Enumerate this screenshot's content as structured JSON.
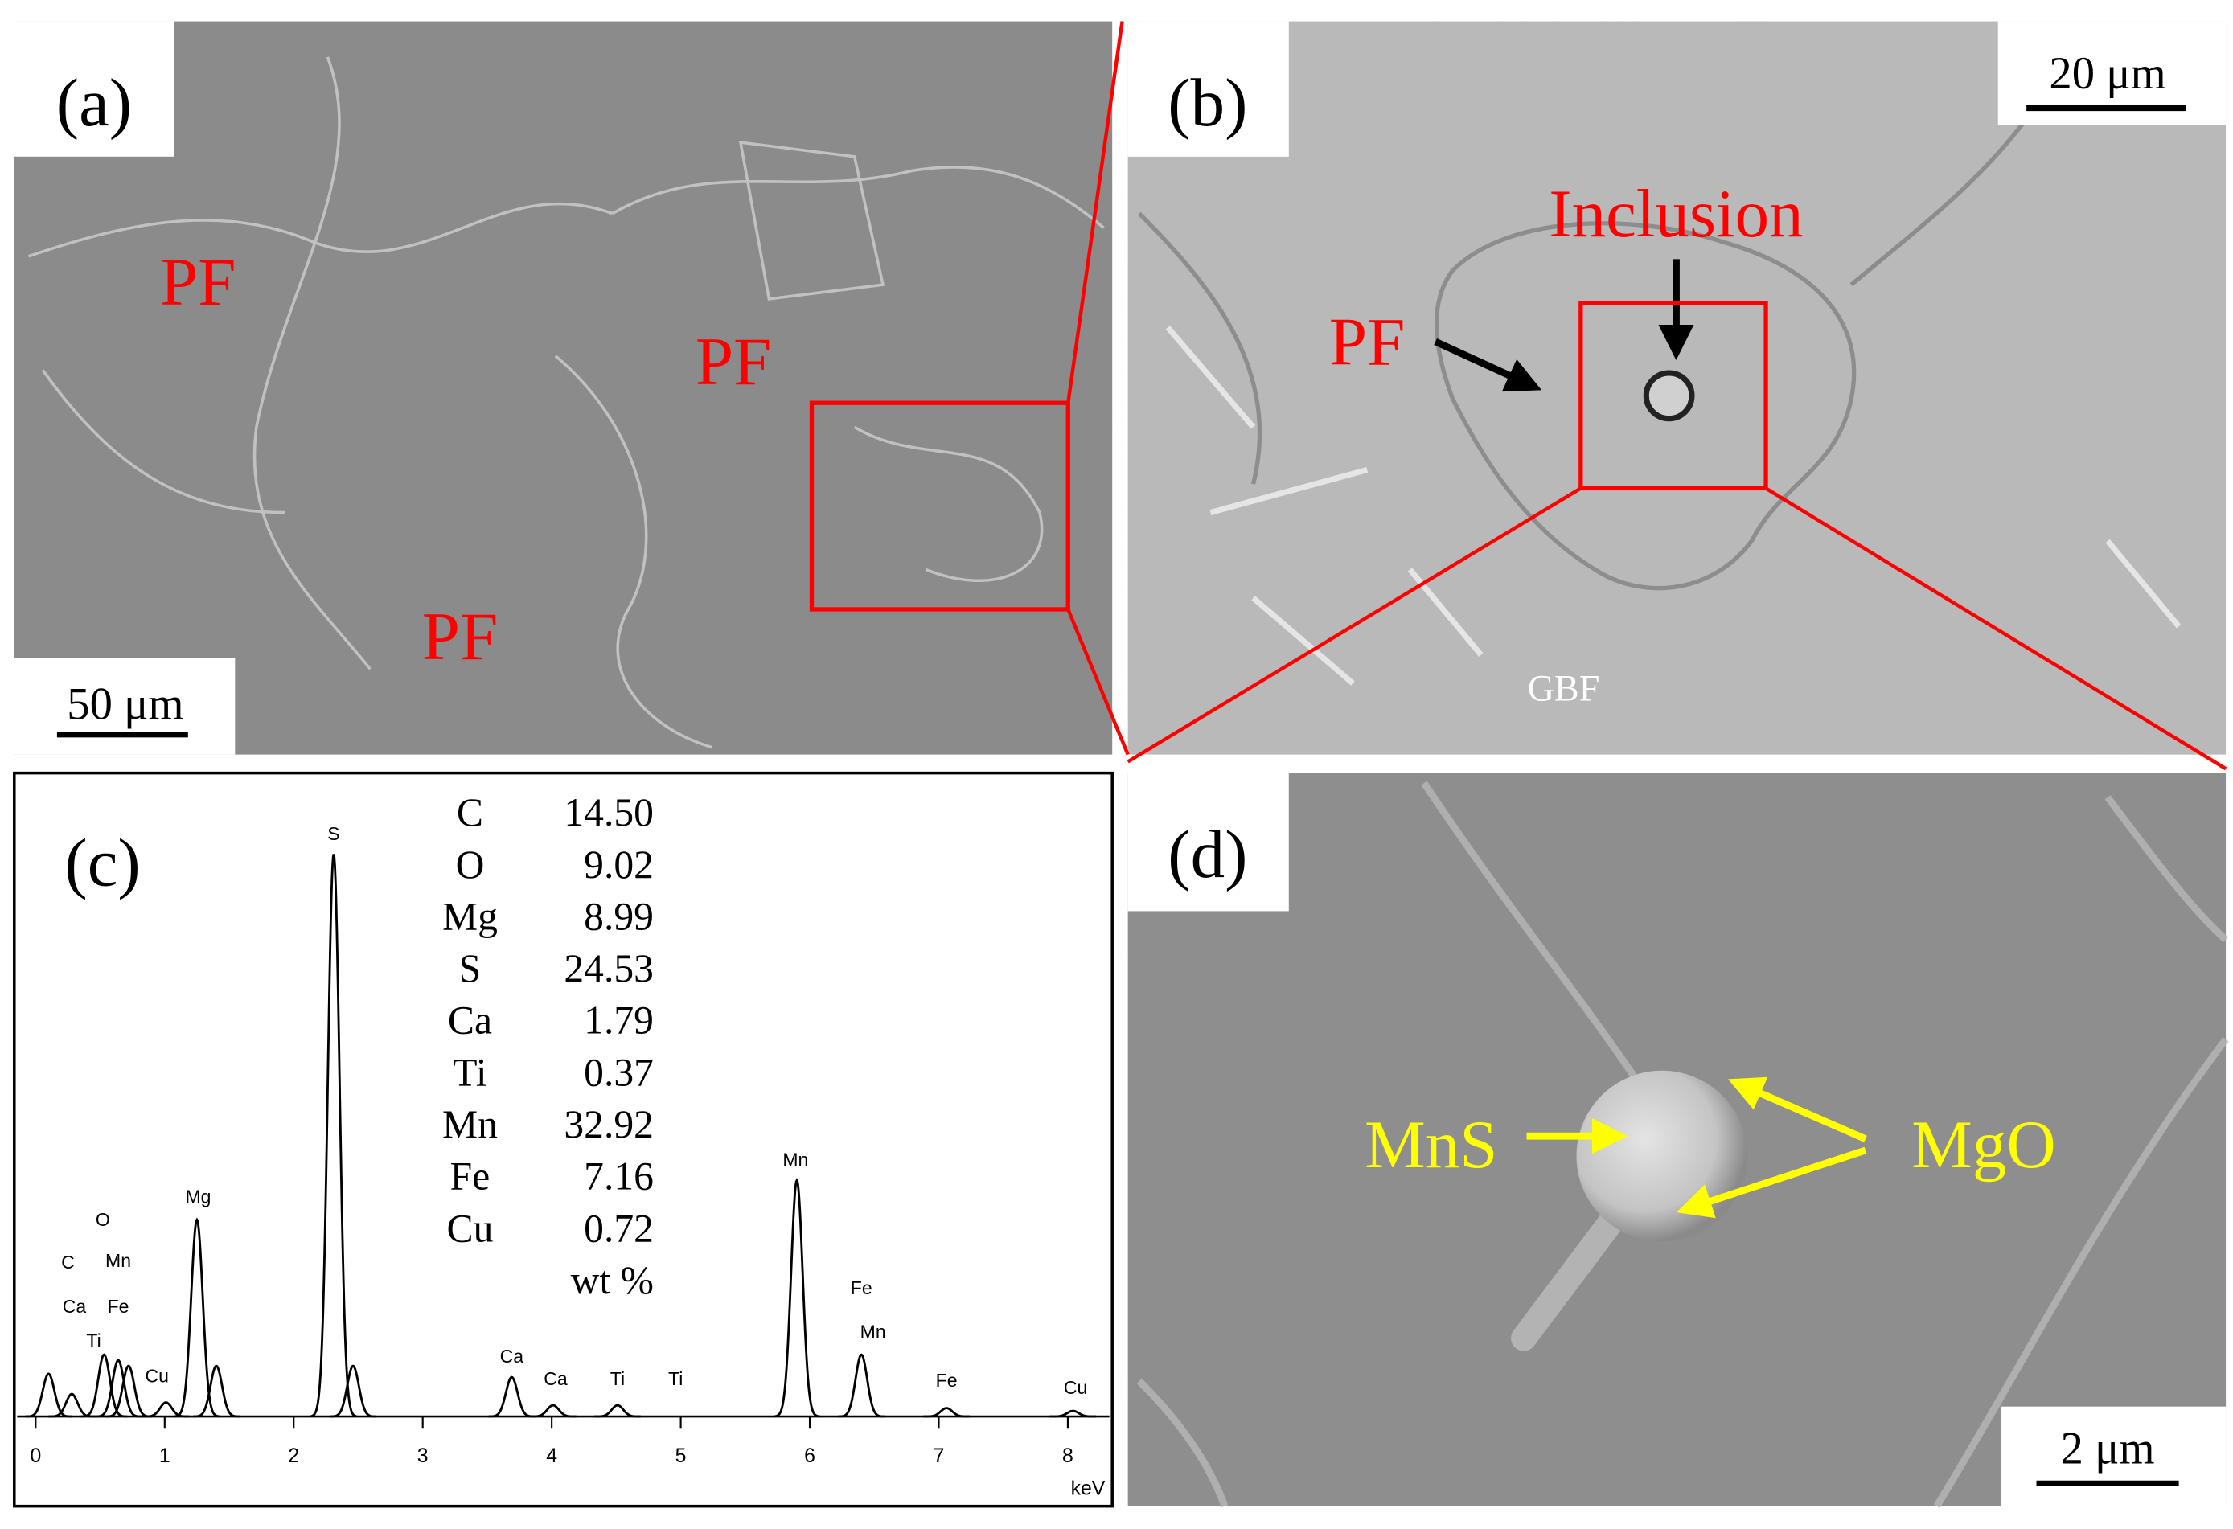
{
  "panels": [
    {
      "label": "(a)",
      "annotations": [
        "PF",
        "PF",
        "PF"
      ],
      "scale_bar": "50 μm"
    },
    {
      "label": "(b)",
      "annotations": [
        "Inclusion",
        "PF",
        "GBF"
      ],
      "scale_bar": "20 μm"
    },
    {
      "label": "(c)",
      "spectrum": {
        "type": "spectrum",
        "x_label": "keV",
        "xlim": [
          0,
          8.3
        ],
        "ylim": [
          0,
          100
        ],
        "xticks": [
          0,
          1,
          2,
          3,
          4,
          5,
          6,
          7,
          8
        ],
        "color": "#000000",
        "peaks": {
          "x": [
            0.1,
            0.28,
            0.53,
            0.64,
            0.72,
            1.01,
            1.25,
            1.4,
            2.31,
            2.46,
            3.69,
            4.01,
            4.51,
            5.9,
            6.4,
            7.06,
            8.04
          ],
          "values": [
            7.6,
            4,
            11,
            10,
            9,
            2.5,
            35,
            9,
            100,
            9,
            7,
            2,
            2,
            42,
            11,
            1.5,
            1
          ]
        },
        "peak_labels": {
          "text": [
            "C",
            "Ca",
            "Ti",
            "O",
            "Mn",
            "Fe",
            "Cu",
            "Mg",
            "S",
            "Ca",
            "Ca",
            "Ti",
            "Ti",
            "Mn",
            "Fe",
            "Mn",
            "Fe",
            "Cu"
          ],
          "x": [
            0.25,
            0.3,
            0.45,
            0.52,
            0.64,
            0.64,
            0.94,
            1.26,
            2.31,
            3.69,
            4.03,
            4.51,
            4.96,
            5.89,
            6.4,
            6.49,
            7.06,
            8.06
          ]
        }
      },
      "composition": {
        "elements": [
          "C",
          "O",
          "Mg",
          "S",
          "Ca",
          "Ti",
          "Mn",
          "Fe",
          "Cu"
        ],
        "values": [
          "14.50",
          "9.02",
          "8.99",
          "24.53",
          "1.79",
          "0.37",
          "32.92",
          "7.16",
          "0.72"
        ],
        "unit": "wt %"
      }
    },
    {
      "label": "(d)",
      "annotations": [
        "MnS",
        "MgO"
      ],
      "scale_bar": "2 μm"
    }
  ]
}
